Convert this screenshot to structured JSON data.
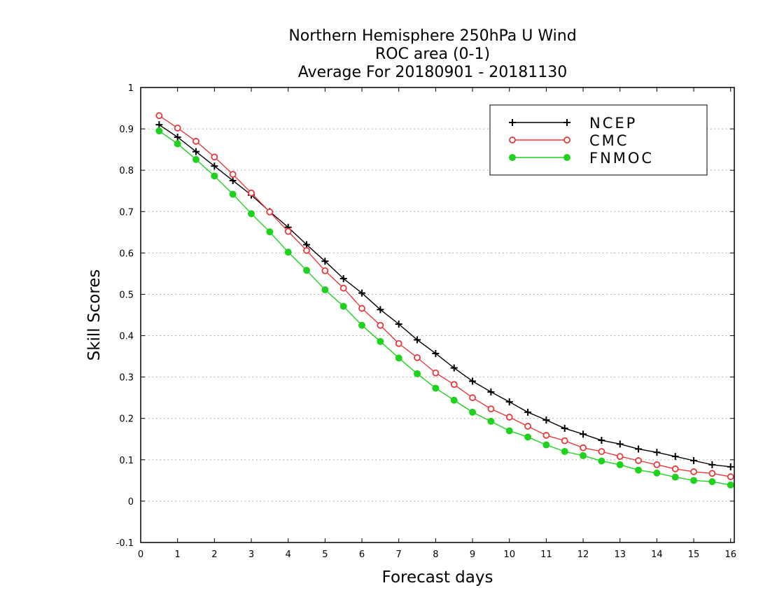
{
  "chart_data": {
    "type": "line",
    "title_lines": [
      "Northern Hemisphere 250hPa U Wind",
      "ROC area (0-1)",
      "Average For 20180901 - 20181130"
    ],
    "xlabel": "Forecast days",
    "ylabel": "Skill Scores",
    "xlim": [
      0,
      16.1
    ],
    "ylim": [
      -0.1,
      1
    ],
    "x_ticks": [
      0,
      1,
      2,
      3,
      4,
      5,
      6,
      7,
      8,
      9,
      10,
      11,
      12,
      13,
      14,
      15,
      16
    ],
    "x_tick_labels": [
      "0",
      "1",
      "2",
      "3",
      "4",
      "5",
      "6",
      "7",
      "8",
      "9",
      "10",
      "11",
      "12",
      "13",
      "14",
      "15",
      "16"
    ],
    "y_ticks": [
      -0.1,
      0,
      0.1,
      0.2,
      0.3,
      0.4,
      0.5,
      0.6,
      0.7,
      0.8,
      0.9,
      1
    ],
    "y_tick_labels": [
      "-0.1",
      "0",
      "0.1",
      "0.2",
      "0.3",
      "0.4",
      "0.5",
      "0.6",
      "0.7",
      "0.8",
      "0.9",
      "1"
    ],
    "grid": "horizontal dotted",
    "legend_position": "top-right",
    "x": [
      0.5,
      1,
      1.5,
      2,
      2.5,
      3,
      3.5,
      4,
      4.5,
      5,
      5.5,
      6,
      6.5,
      7,
      7.5,
      8,
      8.5,
      9,
      9.5,
      10,
      10.5,
      11,
      11.5,
      12,
      12.5,
      13,
      13.5,
      14,
      14.5,
      15,
      15.5,
      16
    ],
    "series": [
      {
        "name": "NCEP",
        "color": "#000000",
        "marker": "plus",
        "values": [
          0.91,
          0.88,
          0.845,
          0.81,
          0.775,
          0.74,
          0.7,
          0.662,
          0.62,
          0.58,
          0.538,
          0.503,
          0.463,
          0.428,
          0.39,
          0.357,
          0.322,
          0.29,
          0.264,
          0.24,
          0.215,
          0.196,
          0.176,
          0.162,
          0.147,
          0.138,
          0.126,
          0.118,
          0.108,
          0.098,
          0.088,
          0.083
        ]
      },
      {
        "name": "CMC",
        "color": "#e8383b",
        "marker": "open-circle",
        "values": [
          0.932,
          0.902,
          0.87,
          0.832,
          0.79,
          0.745,
          0.699,
          0.652,
          0.606,
          0.557,
          0.515,
          0.466,
          0.425,
          0.381,
          0.347,
          0.31,
          0.282,
          0.25,
          0.223,
          0.203,
          0.181,
          0.159,
          0.146,
          0.129,
          0.12,
          0.108,
          0.098,
          0.088,
          0.078,
          0.071,
          0.067,
          0.059
        ]
      },
      {
        "name": "FNMOC",
        "color": "#1ed21e",
        "marker": "filled-circle",
        "values": [
          0.895,
          0.864,
          0.826,
          0.786,
          0.742,
          0.695,
          0.651,
          0.602,
          0.558,
          0.511,
          0.471,
          0.425,
          0.386,
          0.346,
          0.308,
          0.273,
          0.244,
          0.215,
          0.193,
          0.17,
          0.155,
          0.136,
          0.12,
          0.11,
          0.097,
          0.088,
          0.075,
          0.068,
          0.058,
          0.05,
          0.047,
          0.039
        ]
      }
    ]
  }
}
